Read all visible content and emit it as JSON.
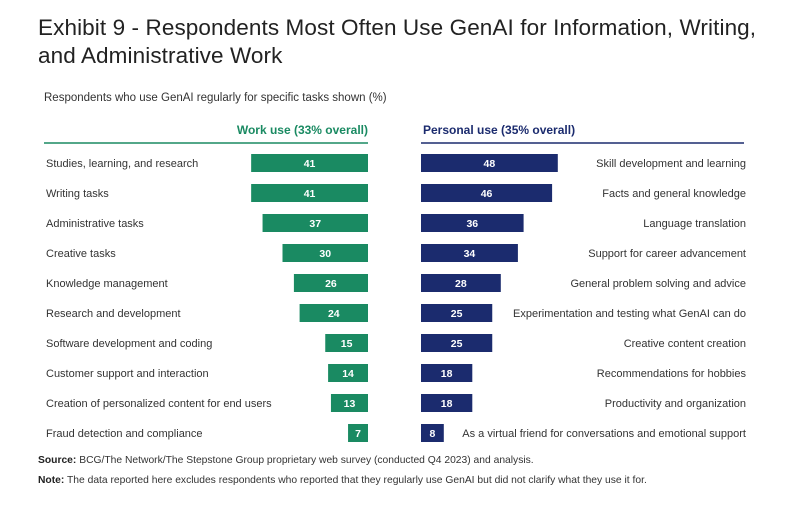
{
  "title": "Exhibit 9 - Respondents Most Often Use GenAI for Information, Writing, and Administrative Work",
  "subtitle": "Respondents who use GenAI regularly for specific tasks shown (%)",
  "footer": {
    "source_label": "Source:",
    "source_text": "BCG/The Network/The Stepstone Group proprietary web survey (conducted Q4 2023) and analysis.",
    "note_label": "Note:",
    "note_text": "The data reported here excludes respondents who reported that they regularly use GenAI but did not clarify what they use it for."
  },
  "colors": {
    "work": "#1a8a62",
    "personal": "#1b2b6e",
    "work_header": "#1a8a62",
    "personal_header": "#1b2b6e"
  },
  "chart_data": [
    {
      "type": "bar",
      "orientation": "horizontal-left",
      "title": "Work use (33% overall)",
      "unit": "%",
      "categories": [
        "Studies, learning, and research",
        "Writing tasks",
        "Administrative tasks",
        "Creative tasks",
        "Knowledge management",
        "Research and development",
        "Software development and coding",
        "Customer support and interaction",
        "Creation of personalized content for end users",
        "Fraud detection and compliance"
      ],
      "values": [
        41,
        41,
        37,
        30,
        26,
        24,
        15,
        14,
        13,
        7
      ]
    },
    {
      "type": "bar",
      "orientation": "horizontal-right",
      "title": "Personal use (35% overall)",
      "unit": "%",
      "categories": [
        "Skill development and learning",
        "Facts and general knowledge",
        "Language translation",
        "Support for career advancement",
        "General problem solving and advice",
        "Experimentation and testing what GenAI can do",
        "Creative content creation",
        "Recommendations for hobbies",
        "Productivity and organization",
        "As a virtual friend for conversations and emotional support"
      ],
      "values": [
        48,
        46,
        36,
        34,
        28,
        25,
        25,
        18,
        18,
        8
      ]
    }
  ]
}
